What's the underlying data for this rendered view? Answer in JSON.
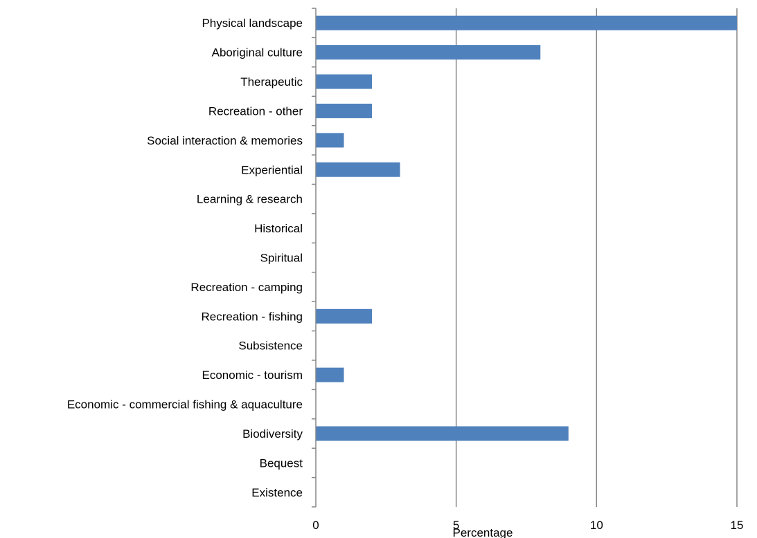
{
  "chart_data": {
    "type": "bar",
    "orientation": "horizontal",
    "categories": [
      "Physical landscape",
      "Aboriginal culture",
      "Therapeutic",
      "Recreation - other",
      "Social interaction & memories",
      "Experiential",
      "Learning & research",
      "Historical",
      "Spiritual",
      "Recreation - camping",
      "Recreation - fishing",
      "Subsistence",
      "Economic - tourism",
      "Economic - commercial fishing & aquaculture",
      "Biodiversity",
      "Bequest",
      "Existence"
    ],
    "values": [
      15,
      8,
      2,
      2,
      1,
      3,
      0,
      0,
      0,
      0,
      2,
      0,
      1,
      0,
      9,
      0,
      0
    ],
    "xlabel": "Percentage",
    "ylabel": "",
    "xlim": [
      0,
      15
    ],
    "xticks": [
      "0",
      "5",
      "10",
      "15"
    ],
    "grid": "vertical",
    "legend": "none",
    "bar_color": "#4F81BD",
    "grid_color": "#868686"
  }
}
